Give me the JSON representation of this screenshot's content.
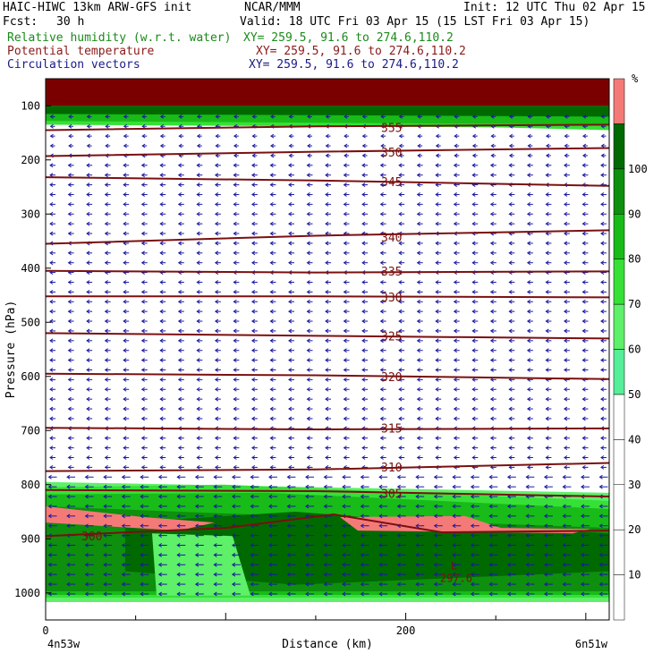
{
  "header": {
    "model": "HAIC-HIWC 13km ARW-GFS init",
    "center": "NCAR/MMM",
    "init": "Init: 12 UTC Thu 02 Apr 15",
    "fcst_label": "Fcst:",
    "fcst_value": "30 h",
    "valid": "Valid: 18 UTC Fri 03 Apr 15 (15 LST Fri 03 Apr 15)",
    "fields": [
      {
        "name": "Relative humidity (w.r.t. water)",
        "xy": "XY= 259.5, 91.6 to 274.6,110.2",
        "color": "#1a8a1a"
      },
      {
        "name": "Potential temperature",
        "xy": "XY= 259.5, 91.6 to 274.6,110.2",
        "color": "#8b1a1a"
      },
      {
        "name": "Circulation vectors",
        "xy": "XY= 259.5, 91.6 to 274.6,110.2",
        "color": "#1a1a8b"
      }
    ]
  },
  "chart_data": {
    "type": "cross-section",
    "xlabel": "Distance (km)",
    "ylabel": "Pressure (hPa)",
    "xlim": [
      0,
      313
    ],
    "ylim": [
      1050,
      50
    ],
    "x_ticks": [
      0,
      200
    ],
    "y_ticks": [
      100,
      200,
      300,
      400,
      500,
      600,
      700,
      800,
      900,
      1000
    ],
    "x_endpoint_labels": [
      "4n53w",
      "6n51w"
    ],
    "colorbar": {
      "unit": "%",
      "levels": [
        10,
        20,
        30,
        40,
        50,
        60,
        70,
        80,
        90,
        100
      ],
      "bands": [
        {
          "range": [
            50,
            60
          ],
          "color": "#55ee99"
        },
        {
          "range": [
            60,
            70
          ],
          "color": "#5ef068"
        },
        {
          "range": [
            70,
            80
          ],
          "color": "#36e036"
        },
        {
          "range": [
            80,
            90
          ],
          "color": "#18bb18"
        },
        {
          "range": [
            90,
            100
          ],
          "color": "#0e8f0e"
        },
        {
          "range": [
            100,
            110
          ],
          "color": "#006a00"
        },
        {
          "range": [
            110,
            120
          ],
          "color": "#f47a78"
        }
      ]
    },
    "theta_contours": [
      {
        "label": "355",
        "points": [
          [
            0,
            145
          ],
          [
            150,
            138
          ],
          [
            313,
            135
          ]
        ]
      },
      {
        "label": "350",
        "points": [
          [
            0,
            193
          ],
          [
            150,
            185
          ],
          [
            313,
            178
          ]
        ]
      },
      {
        "label": "345",
        "points": [
          [
            0,
            232
          ],
          [
            150,
            238
          ],
          [
            313,
            248
          ]
        ]
      },
      {
        "label": "340",
        "points": [
          [
            0,
            355
          ],
          [
            150,
            340
          ],
          [
            313,
            330
          ]
        ]
      },
      {
        "label": "335",
        "points": [
          [
            0,
            405
          ],
          [
            150,
            408
          ],
          [
            313,
            406
          ]
        ]
      },
      {
        "label": "330",
        "points": [
          [
            0,
            452
          ],
          [
            150,
            452
          ],
          [
            313,
            454
          ]
        ]
      },
      {
        "label": "325",
        "points": [
          [
            0,
            520
          ],
          [
            150,
            525
          ],
          [
            313,
            530
          ]
        ]
      },
      {
        "label": "320",
        "points": [
          [
            0,
            595
          ],
          [
            150,
            598
          ],
          [
            313,
            605
          ]
        ]
      },
      {
        "label": "315",
        "points": [
          [
            0,
            695
          ],
          [
            150,
            698
          ],
          [
            313,
            696
          ]
        ]
      },
      {
        "label": "310",
        "points": [
          [
            0,
            775
          ],
          [
            150,
            772
          ],
          [
            313,
            760
          ]
        ]
      },
      {
        "label": "305",
        "points": [
          [
            0,
            810
          ],
          [
            150,
            812
          ],
          [
            313,
            822
          ]
        ]
      },
      {
        "label": "300",
        "points": [
          [
            0,
            895
          ],
          [
            100,
            880
          ],
          [
            160,
            855
          ],
          [
            220,
            888
          ],
          [
            313,
            885
          ]
        ]
      }
    ],
    "minimum_label": {
      "text": "L",
      "value": "297.6",
      "x": 225,
      "p": 980
    },
    "wind": "easterly (westward) flow at most levels"
  }
}
